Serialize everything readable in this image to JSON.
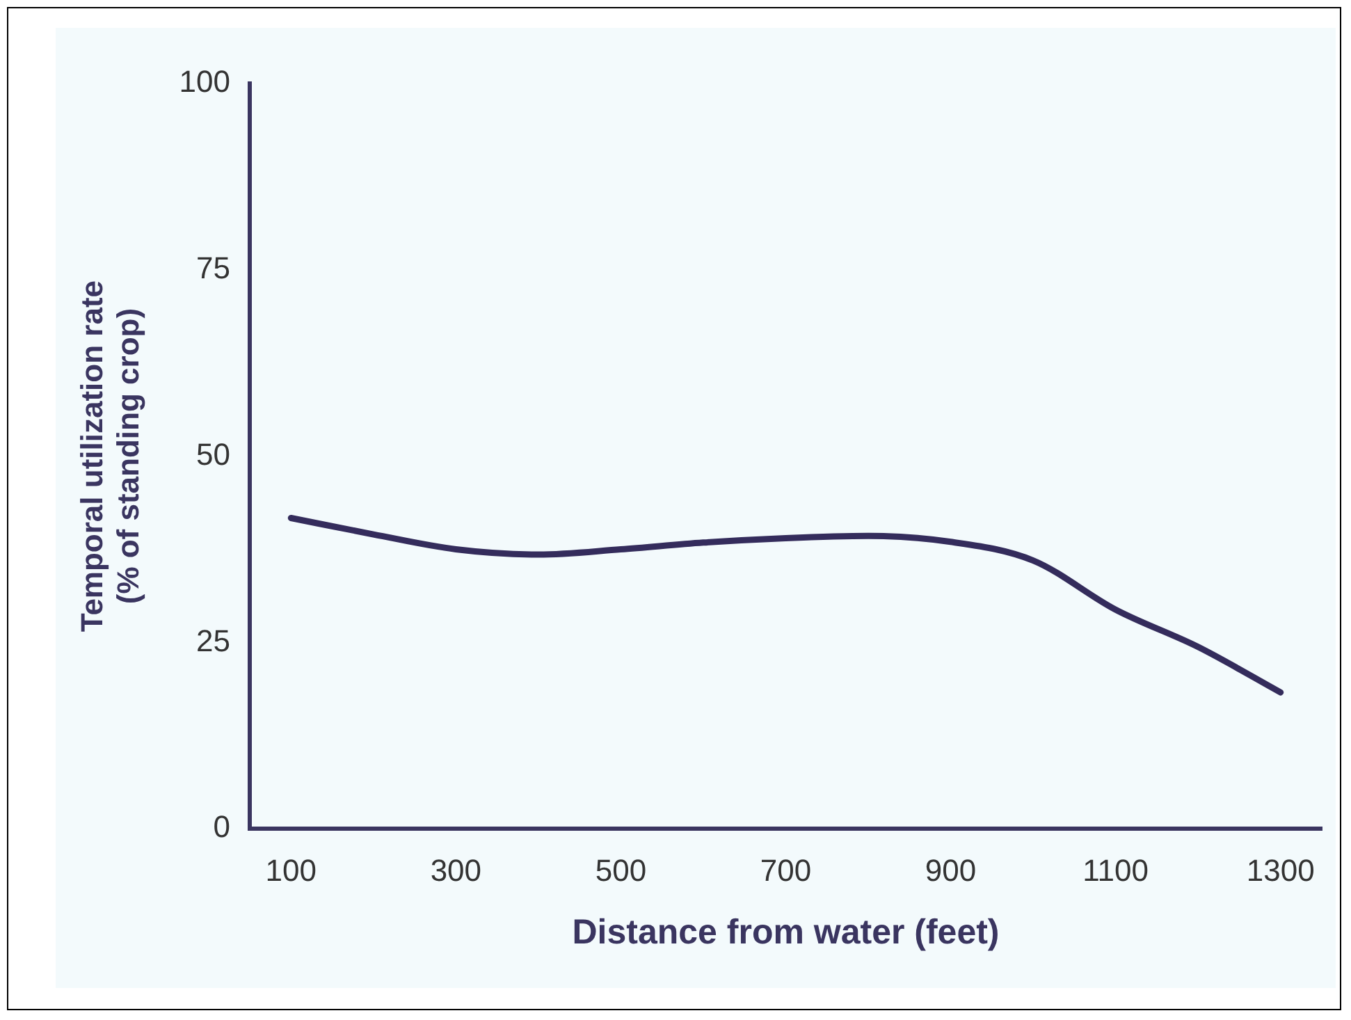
{
  "chart_data": {
    "type": "line",
    "xlabel": "Distance from water (feet)",
    "ylabel": "Temporal utilization rate\n(% of standing crop)",
    "x": [
      100,
      200,
      300,
      400,
      500,
      600,
      700,
      800,
      900,
      1000,
      1100,
      1200,
      1300
    ],
    "series": [
      {
        "color": "#342c5c",
        "values": [
          41.7,
          39.5,
          37.5,
          36.8,
          37.5,
          38.4,
          39,
          39.3,
          38.5,
          36,
          29.4,
          24.4,
          18.3
        ]
      }
    ],
    "xlim": [
      50,
      1350
    ],
    "xticks": [
      100,
      300,
      500,
      700,
      900,
      1100,
      1300
    ],
    "ylim": [
      0,
      100
    ],
    "yticks": [
      0,
      25,
      50,
      75,
      100
    ],
    "grid": false,
    "legend": false,
    "marker": "none",
    "line_style": "solid"
  }
}
